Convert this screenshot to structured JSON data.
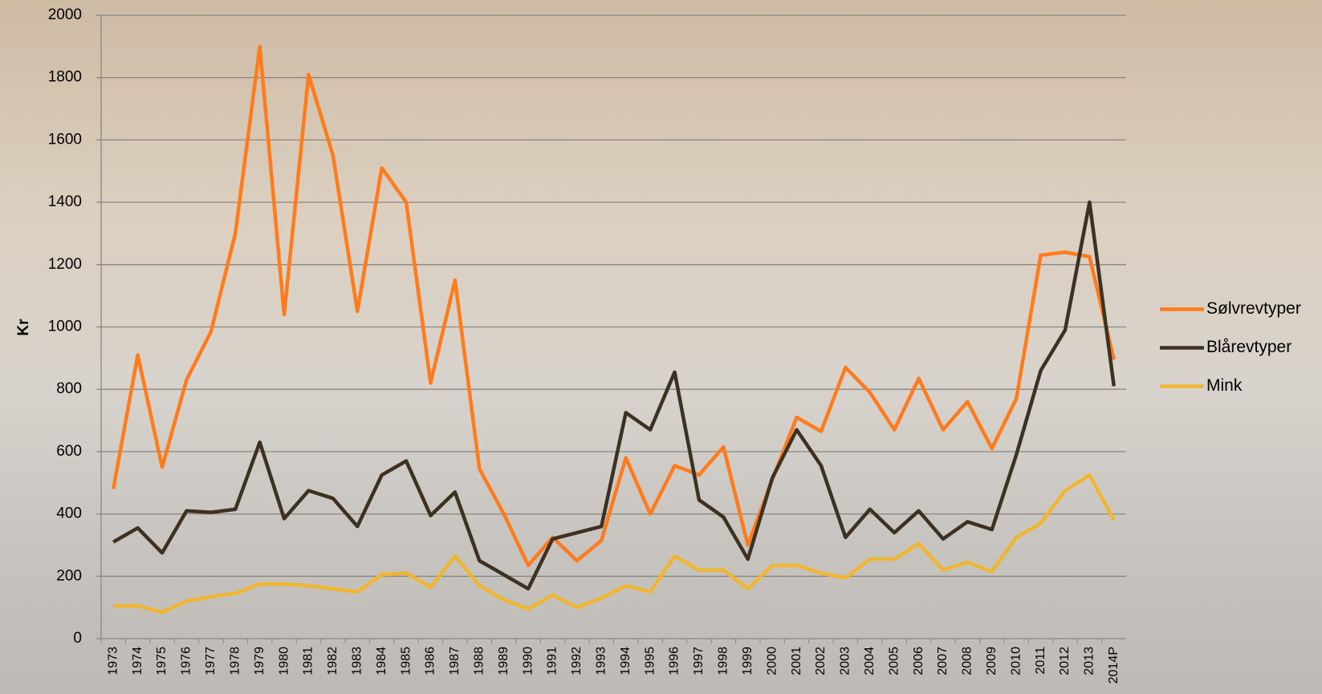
{
  "chart_data": {
    "type": "line",
    "y_label": "Kr",
    "categories": [
      "1973",
      "1974",
      "1975",
      "1976",
      "1977",
      "1978",
      "1979",
      "1980",
      "1981",
      "1982",
      "1983",
      "1984",
      "1985",
      "1986",
      "1987",
      "1988",
      "1989",
      "1990",
      "1991",
      "1992",
      "1993",
      "1994",
      "1995",
      "1996",
      "1997",
      "1998",
      "1999",
      "2000",
      "2001",
      "2002",
      "2003",
      "2004",
      "2005",
      "2006",
      "2007",
      "2008",
      "2009",
      "2010",
      "2011",
      "2012",
      "2013",
      "2014P"
    ],
    "series": [
      {
        "name": "Sølvrevtyper",
        "color": "#ff7b1c",
        "values": [
          480,
          910,
          550,
          830,
          985,
          1300,
          1900,
          1040,
          1810,
          1550,
          1050,
          1510,
          1400,
          820,
          1150,
          545,
          400,
          235,
          325,
          250,
          315,
          580,
          400,
          555,
          525,
          615,
          300,
          510,
          710,
          665,
          870,
          790,
          670,
          835,
          670,
          760,
          610,
          770,
          1230,
          1240,
          1225,
          895
        ]
      },
      {
        "name": "Blårevtyper",
        "color": "#3d3122",
        "values": [
          310,
          355,
          275,
          410,
          405,
          415,
          630,
          385,
          475,
          450,
          360,
          525,
          570,
          395,
          470,
          250,
          205,
          160,
          320,
          340,
          360,
          725,
          670,
          855,
          445,
          390,
          255,
          515,
          670,
          555,
          325,
          415,
          340,
          410,
          320,
          375,
          350,
          590,
          860,
          990,
          1400,
          810
        ]
      },
      {
        "name": "Mink",
        "color": "#f0b630",
        "values": [
          105,
          105,
          85,
          120,
          135,
          145,
          175,
          175,
          170,
          160,
          150,
          205,
          210,
          165,
          265,
          170,
          125,
          95,
          140,
          100,
          130,
          170,
          150,
          265,
          220,
          220,
          160,
          235,
          235,
          210,
          195,
          255,
          255,
          305,
          220,
          245,
          215,
          325,
          370,
          475,
          525,
          380
        ]
      }
    ],
    "ylim": [
      0,
      2000
    ],
    "yticks": [
      0,
      200,
      400,
      600,
      800,
      1000,
      1200,
      1400,
      1600,
      1800,
      2000
    ],
    "grid": true,
    "legend": "right"
  }
}
